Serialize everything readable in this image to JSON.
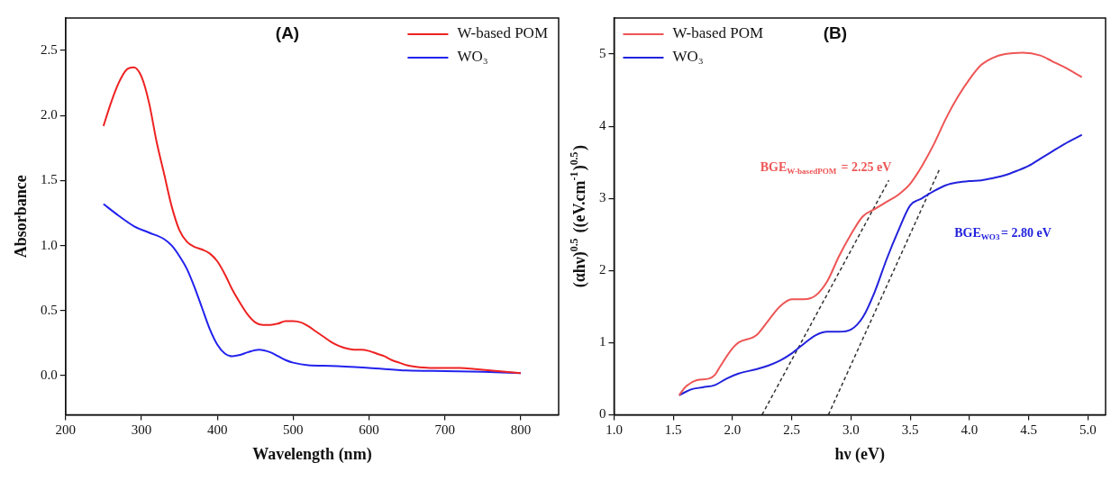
{
  "chart_data": [
    {
      "type": "line",
      "title": "(A)",
      "xlabel": "Wavelength (nm)",
      "ylabel": "Absorbance",
      "xlim": [
        200,
        850
      ],
      "ylim": [
        -0.3,
        2.75
      ],
      "xticks": [
        200,
        300,
        400,
        500,
        600,
        700,
        800
      ],
      "yticks": [
        {
          "value": 0,
          "label": "0.0"
        },
        {
          "value": 0.5,
          "label": "0.5"
        },
        {
          "value": 1,
          "label": "1.0"
        },
        {
          "value": 1.5,
          "label": "1.5"
        },
        {
          "value": 2,
          "label": "2.0"
        },
        {
          "value": 2.5,
          "label": "2.5"
        }
      ],
      "legend": "top right",
      "marker": "none",
      "series": [
        {
          "name": "W-based POM",
          "color": "#ee2222",
          "x": [
            250,
            260,
            270,
            280,
            290,
            300,
            310,
            320,
            330,
            340,
            350,
            360,
            370,
            380,
            390,
            400,
            410,
            420,
            430,
            440,
            450,
            460,
            470,
            480,
            490,
            500,
            510,
            520,
            530,
            540,
            550,
            560,
            570,
            580,
            590,
            600,
            610,
            620,
            630,
            640,
            650,
            660,
            680,
            700,
            720,
            740,
            760,
            780,
            800
          ],
          "values": [
            1.92,
            2.1,
            2.25,
            2.35,
            2.37,
            2.3,
            2.1,
            1.8,
            1.55,
            1.3,
            1.12,
            1.03,
            0.99,
            0.97,
            0.94,
            0.88,
            0.78,
            0.66,
            0.56,
            0.47,
            0.41,
            0.39,
            0.39,
            0.4,
            0.42,
            0.42,
            0.41,
            0.38,
            0.34,
            0.3,
            0.26,
            0.23,
            0.21,
            0.2,
            0.2,
            0.19,
            0.17,
            0.15,
            0.12,
            0.1,
            0.08,
            0.07,
            0.06,
            0.06,
            0.06,
            0.05,
            0.04,
            0.03,
            0.02
          ]
        },
        {
          "name": "WO₃",
          "color": "#2222ee",
          "x": [
            250,
            270,
            290,
            310,
            330,
            340,
            350,
            360,
            370,
            380,
            390,
            400,
            410,
            420,
            430,
            440,
            455,
            470,
            480,
            490,
            500,
            520,
            550,
            600,
            650,
            700,
            750,
            800
          ],
          "values": [
            1.32,
            1.23,
            1.15,
            1.1,
            1.05,
            1.0,
            0.92,
            0.82,
            0.68,
            0.52,
            0.36,
            0.24,
            0.17,
            0.15,
            0.16,
            0.18,
            0.2,
            0.18,
            0.15,
            0.12,
            0.1,
            0.08,
            0.075,
            0.06,
            0.04,
            0.035,
            0.03,
            0.02
          ]
        }
      ]
    },
    {
      "type": "line",
      "title": "(B)",
      "xlabel": "hν (eV)",
      "ylabel": "(αhν)$^{0.5}$ ((eV.cm$^{-1}$)$^{0.5}$)",
      "xlim": [
        1.0,
        5.15
      ],
      "ylim": [
        0,
        5.5
      ],
      "xticks": [
        {
          "value": 1,
          "label": "1.0"
        },
        {
          "value": 1.5,
          "label": "1.5"
        },
        {
          "value": 2,
          "label": "2.0"
        },
        {
          "value": 2.5,
          "label": "2.5"
        },
        {
          "value": 3,
          "label": "3.0"
        },
        {
          "value": 3.5,
          "label": "3.5"
        },
        {
          "value": 4,
          "label": "4.0"
        },
        {
          "value": 4.5,
          "label": "4.5"
        },
        {
          "value": 5,
          "label": "5.0"
        }
      ],
      "yticks": [
        0,
        1,
        2,
        3,
        4,
        5
      ],
      "legend": "top left",
      "marker": "none",
      "annotations": [
        "BGE$_{W-basedPOM}$ = 2.25 eV",
        "BGE$_{WO3}$= 2.80 eV"
      ],
      "series": [
        {
          "name": "W-based POM",
          "color": "#ee5555",
          "x": [
            1.55,
            1.6,
            1.7,
            1.8,
            1.85,
            1.9,
            2.0,
            2.05,
            2.2,
            2.3,
            2.4,
            2.5,
            2.6,
            2.7,
            2.8,
            2.9,
            3.0,
            3.1,
            3.2,
            3.3,
            3.4,
            3.5,
            3.6,
            3.7,
            3.8,
            3.9,
            4.0,
            4.1,
            4.2,
            4.3,
            4.45,
            4.6,
            4.7,
            4.8,
            4.95
          ],
          "values": [
            0.27,
            0.38,
            0.48,
            0.5,
            0.55,
            0.68,
            0.92,
            1.0,
            1.1,
            1.3,
            1.5,
            1.6,
            1.6,
            1.65,
            1.85,
            2.2,
            2.5,
            2.75,
            2.85,
            2.95,
            3.05,
            3.2,
            3.45,
            3.75,
            4.1,
            4.4,
            4.65,
            4.85,
            4.95,
            5.0,
            5.02,
            4.98,
            4.9,
            4.82,
            4.68
          ]
        },
        {
          "name": "WO₃",
          "color": "#2222dd",
          "x": [
            1.55,
            1.65,
            1.75,
            1.85,
            1.95,
            2.05,
            2.2,
            2.3,
            2.4,
            2.5,
            2.6,
            2.7,
            2.8,
            2.9,
            3.0,
            3.1,
            3.2,
            3.3,
            3.4,
            3.5,
            3.6,
            3.7,
            3.8,
            3.9,
            4.0,
            4.1,
            4.2,
            4.3,
            4.4,
            4.5,
            4.6,
            4.7,
            4.8,
            4.95
          ],
          "values": [
            0.27,
            0.35,
            0.38,
            0.41,
            0.5,
            0.57,
            0.63,
            0.68,
            0.75,
            0.85,
            0.98,
            1.1,
            1.15,
            1.15,
            1.18,
            1.35,
            1.7,
            2.15,
            2.55,
            2.9,
            3.0,
            3.1,
            3.18,
            3.22,
            3.24,
            3.25,
            3.28,
            3.32,
            3.38,
            3.45,
            3.55,
            3.65,
            3.75,
            3.88
          ]
        },
        {
          "type": "line",
          "color": "#333333",
          "line_style": "dashed",
          "x": [
            2.25,
            3.32
          ],
          "values": [
            0,
            3.25
          ]
        },
        {
          "type": "line",
          "color": "#333333",
          "line_style": "dashed",
          "x": [
            2.81,
            3.75
          ],
          "values": [
            0,
            3.41
          ]
        }
      ]
    }
  ]
}
